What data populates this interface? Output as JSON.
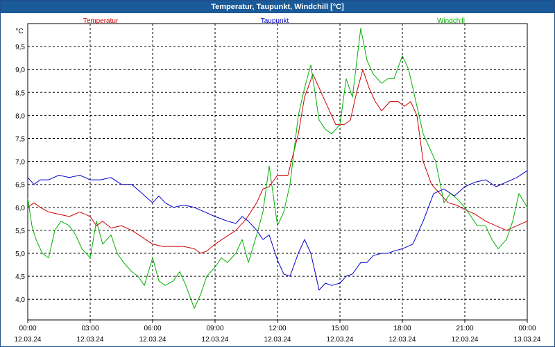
{
  "window": {
    "title": "Temperatur, Taupunkt, Windchill [°C]"
  },
  "chart_data": {
    "type": "line",
    "title": "Temperatur, Taupunkt, Windchill [°C]",
    "ylabel": "°C",
    "xlabel": "",
    "ylim": [
      3.55,
      10.0
    ],
    "xlim": [
      0,
      24
    ],
    "grid": true,
    "yticks": [
      4.0,
      4.5,
      5.0,
      5.5,
      6.0,
      6.5,
      7.0,
      7.5,
      8.0,
      8.5,
      9.0,
      9.5
    ],
    "ytick_labels": [
      "4,0",
      "4,5",
      "5,0",
      "5,5",
      "6,0",
      "6,5",
      "7,0",
      "7,5",
      "8,0",
      "8,5",
      "9,0",
      "9,5"
    ],
    "xticks": [
      {
        "x": 0,
        "time": "00:00",
        "date": "12.03.24"
      },
      {
        "x": 3,
        "time": "03:00",
        "date": "12.03.24"
      },
      {
        "x": 6,
        "time": "06:00",
        "date": "12.03.24"
      },
      {
        "x": 9,
        "time": "09:00",
        "date": "12.03.24"
      },
      {
        "x": 12,
        "time": "12:00",
        "date": "12.03.24"
      },
      {
        "x": 15,
        "time": "15:00",
        "date": "12.03.24"
      },
      {
        "x": 18,
        "time": "18:00",
        "date": "12.03.24"
      },
      {
        "x": 21,
        "time": "21:00",
        "date": "12.03.24"
      },
      {
        "x": 24,
        "time": "00:00",
        "date": "13.03.24"
      }
    ],
    "series": [
      {
        "name": "Temperatur",
        "color": "#cc0000",
        "x": [
          0,
          0.3,
          0.6,
          1,
          1.5,
          2,
          2.5,
          3,
          3.3,
          3.6,
          4,
          4.5,
          5,
          5.5,
          6,
          6.5,
          7,
          7.5,
          8,
          8.3,
          8.6,
          9,
          9.5,
          10,
          10.5,
          11,
          11.3,
          11.6,
          12,
          12.5,
          13,
          13.3,
          13.7,
          14,
          14.4,
          14.8,
          15.2,
          15.5,
          15.8,
          16.1,
          16.4,
          16.7,
          17,
          17.4,
          17.8,
          18.1,
          18.4,
          18.7,
          19,
          19.4,
          19.8,
          20.2,
          20.6,
          21,
          21.5,
          22,
          22.5,
          23,
          23.5,
          24
        ],
        "values": [
          6.0,
          6.1,
          6.0,
          5.9,
          5.85,
          5.8,
          5.9,
          5.8,
          5.6,
          5.7,
          5.55,
          5.6,
          5.5,
          5.35,
          5.2,
          5.15,
          5.15,
          5.15,
          5.1,
          5.0,
          5.05,
          5.2,
          5.35,
          5.5,
          5.75,
          6.1,
          6.4,
          6.45,
          6.7,
          6.7,
          7.6,
          8.4,
          8.9,
          8.6,
          8.2,
          7.8,
          7.8,
          7.9,
          8.5,
          9.0,
          8.6,
          8.3,
          8.1,
          8.3,
          8.3,
          8.2,
          8.3,
          8.0,
          7.0,
          6.5,
          6.3,
          6.1,
          6.05,
          5.95,
          5.85,
          5.7,
          5.6,
          5.5,
          5.6,
          5.7
        ]
      },
      {
        "name": "Taupunkt",
        "color": "#0000cc",
        "x": [
          0,
          0.3,
          0.6,
          1,
          1.5,
          2,
          2.5,
          3,
          3.5,
          4,
          4.5,
          5,
          5.5,
          6,
          6.3,
          6.6,
          7,
          7.5,
          8,
          8.5,
          9,
          9.3,
          9.6,
          10,
          10.3,
          10.6,
          11,
          11.3,
          11.6,
          12,
          12.3,
          12.6,
          13,
          13.3,
          13.6,
          14,
          14.3,
          14.6,
          15,
          15.3,
          15.6,
          16,
          16.3,
          16.6,
          17,
          17.3,
          17.6,
          18,
          18.5,
          19,
          19.5,
          20,
          20.5,
          21,
          21.5,
          22,
          22.5,
          23,
          23.5,
          24
        ],
        "values": [
          6.65,
          6.5,
          6.6,
          6.6,
          6.7,
          6.65,
          6.7,
          6.6,
          6.6,
          6.65,
          6.5,
          6.5,
          6.3,
          6.1,
          6.25,
          6.1,
          6.0,
          6.05,
          6.0,
          5.9,
          5.8,
          5.75,
          5.7,
          5.65,
          5.8,
          5.7,
          5.5,
          5.3,
          5.4,
          4.85,
          4.55,
          4.5,
          5.0,
          5.3,
          5.0,
          4.2,
          4.35,
          4.3,
          4.35,
          4.5,
          4.55,
          4.8,
          4.8,
          4.95,
          5.0,
          5.0,
          5.05,
          5.1,
          5.2,
          5.7,
          6.3,
          6.4,
          6.25,
          6.45,
          6.55,
          6.6,
          6.45,
          6.55,
          6.65,
          6.8
        ]
      },
      {
        "name": "Windchill",
        "color": "#00b000",
        "x": [
          0,
          0.2,
          0.4,
          0.7,
          1,
          1.3,
          1.6,
          2,
          2.3,
          2.6,
          3,
          3.3,
          3.6,
          4,
          4.3,
          4.6,
          5,
          5.3,
          5.6,
          6,
          6.3,
          6.6,
          7,
          7.3,
          7.6,
          8,
          8.3,
          8.6,
          9,
          9.3,
          9.6,
          10,
          10.3,
          10.6,
          11,
          11.3,
          11.6,
          12,
          12.3,
          12.6,
          13,
          13.3,
          13.6,
          14,
          14.3,
          14.6,
          15,
          15.3,
          15.6,
          16,
          16.3,
          16.6,
          17,
          17.3,
          17.6,
          18,
          18.3,
          18.6,
          19,
          19.3,
          19.6,
          20,
          20.3,
          20.6,
          21,
          21.3,
          21.6,
          22,
          22.3,
          22.6,
          23,
          23.3,
          23.6,
          24
        ],
        "values": [
          6.2,
          5.6,
          5.3,
          5.0,
          4.9,
          5.5,
          5.7,
          5.6,
          5.4,
          5.1,
          4.9,
          5.7,
          5.2,
          5.4,
          5.0,
          4.8,
          4.6,
          4.5,
          4.3,
          4.9,
          4.4,
          4.3,
          4.4,
          4.6,
          4.3,
          3.8,
          4.1,
          4.5,
          4.7,
          4.9,
          4.8,
          5.0,
          5.3,
          4.8,
          5.4,
          5.9,
          6.9,
          5.6,
          5.9,
          6.5,
          8.0,
          8.6,
          9.1,
          7.9,
          7.7,
          7.6,
          7.8,
          8.8,
          8.4,
          9.9,
          9.2,
          8.9,
          8.7,
          8.8,
          8.8,
          9.3,
          9.0,
          8.4,
          7.6,
          7.3,
          7.0,
          6.1,
          6.3,
          6.2,
          6.0,
          5.8,
          5.6,
          5.6,
          5.3,
          5.1,
          5.3,
          5.7,
          6.3,
          6.0
        ]
      }
    ]
  }
}
